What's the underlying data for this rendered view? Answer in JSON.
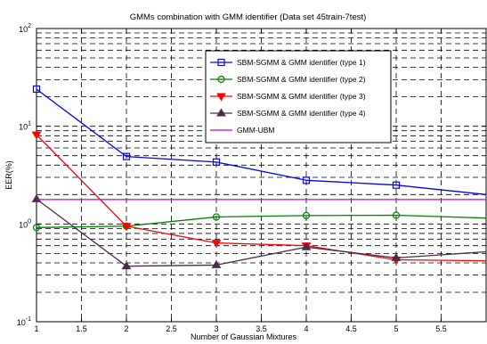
{
  "chart_data": {
    "type": "line",
    "title": "GMMs combination with GMM identifier (Data set 45train-7test)",
    "xlabel": "Number of Gaussian Mixtures",
    "ylabel": "EER(%)",
    "xlim": [
      1,
      6
    ],
    "ylim": [
      0.1,
      100
    ],
    "y_scale": "log",
    "grid": true,
    "legend_position": "top-center",
    "x_ticks": [
      "1",
      "1.5",
      "2",
      "2.5",
      "3",
      "3.5",
      "4",
      "4.5",
      "5",
      "5.5"
    ],
    "y_ticks": [
      {
        "value": 0.1,
        "base": "10",
        "exp": "-1"
      },
      {
        "value": 1,
        "base": "10",
        "exp": "0"
      },
      {
        "value": 10,
        "base": "10",
        "exp": "1"
      },
      {
        "value": 100,
        "base": "10",
        "exp": "2"
      }
    ],
    "series": [
      {
        "name": "SBM-SGMM & GMM identifier (type 1)",
        "color": "#0000ff",
        "marker": "square",
        "x": [
          1,
          2,
          3,
          4,
          5,
          6
        ],
        "y": [
          24,
          4.9,
          4.3,
          2.8,
          2.5,
          2.0
        ]
      },
      {
        "name": "SBM-SGMM & GMM identifier (type 2)",
        "color": "#008000",
        "marker": "circle",
        "x": [
          1,
          2,
          3,
          4,
          5,
          6
        ],
        "y": [
          0.92,
          0.95,
          1.18,
          1.22,
          1.23,
          1.15
        ]
      },
      {
        "name": "SBM-SGMM & GMM identifier (type 3)",
        "color": "#ff0000",
        "marker": "triangle-down",
        "x": [
          1,
          2,
          3,
          4,
          5,
          6
        ],
        "y": [
          8.2,
          0.95,
          0.64,
          0.6,
          0.43,
          0.42
        ]
      },
      {
        "name": "SBM-SGMM & GMM identifier (type 4)",
        "color": "#4b2d4b",
        "marker": "triangle-up",
        "x": [
          1,
          2,
          3,
          4,
          5,
          6
        ],
        "y": [
          1.8,
          0.37,
          0.38,
          0.58,
          0.45,
          0.52
        ]
      },
      {
        "name": "GMM-UBM",
        "color": "#cc00cc",
        "marker": "none",
        "x": [
          1,
          6
        ],
        "y": [
          1.78,
          1.78
        ]
      }
    ]
  }
}
